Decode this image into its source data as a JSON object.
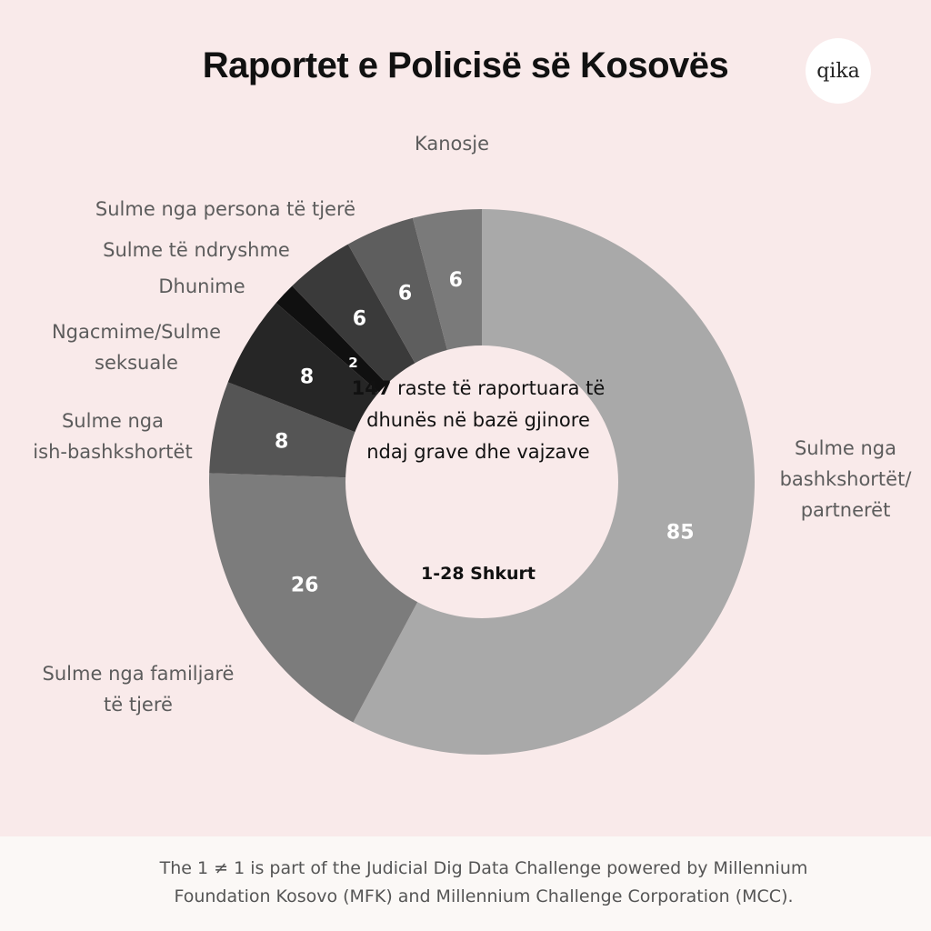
{
  "title": "Raportet e Policisë së Kosovës",
  "logo": "qika",
  "center": {
    "count": "147",
    "text": "raste të raportuara të dhunës në bazë gjinore ndaj grave dhe vajzave",
    "date": "1-28 Shkurt"
  },
  "footer": {
    "line1": "The 1 ≠ 1 is part of the Judicial Dig Data Challenge powered by Millennium",
    "line2": "Foundation Kosovo (MFK) and Millennium Challenge Corporation (MCC)."
  },
  "chart_data": {
    "type": "pie",
    "donut": true,
    "total": 147,
    "slices": [
      {
        "label": [
          "Sulme nga",
          "bashkshortët/",
          "partnerët"
        ],
        "value": 85,
        "color": "#a9a9a9"
      },
      {
        "label": [
          "Sulme nga familjarë",
          "të tjerë"
        ],
        "value": 26,
        "color": "#7c7c7c"
      },
      {
        "label": [
          "Sulme nga",
          "ish-bashkshortët"
        ],
        "value": 8,
        "color": "#555555"
      },
      {
        "label": [
          "Ngacmime/Sulme",
          "seksuale"
        ],
        "value": 8,
        "color": "#262626"
      },
      {
        "label": [
          "Dhunime"
        ],
        "value": 2,
        "color": "#101010"
      },
      {
        "label": [
          "Sulme të ndryshme"
        ],
        "value": 6,
        "color": "#3a3a3a"
      },
      {
        "label": [
          "Sulme nga persona të tjerë"
        ],
        "value": 6,
        "color": "#5e5e5e"
      },
      {
        "label": [
          "Kanosje"
        ],
        "value": 6,
        "color": "#7a7a7a"
      }
    ]
  }
}
